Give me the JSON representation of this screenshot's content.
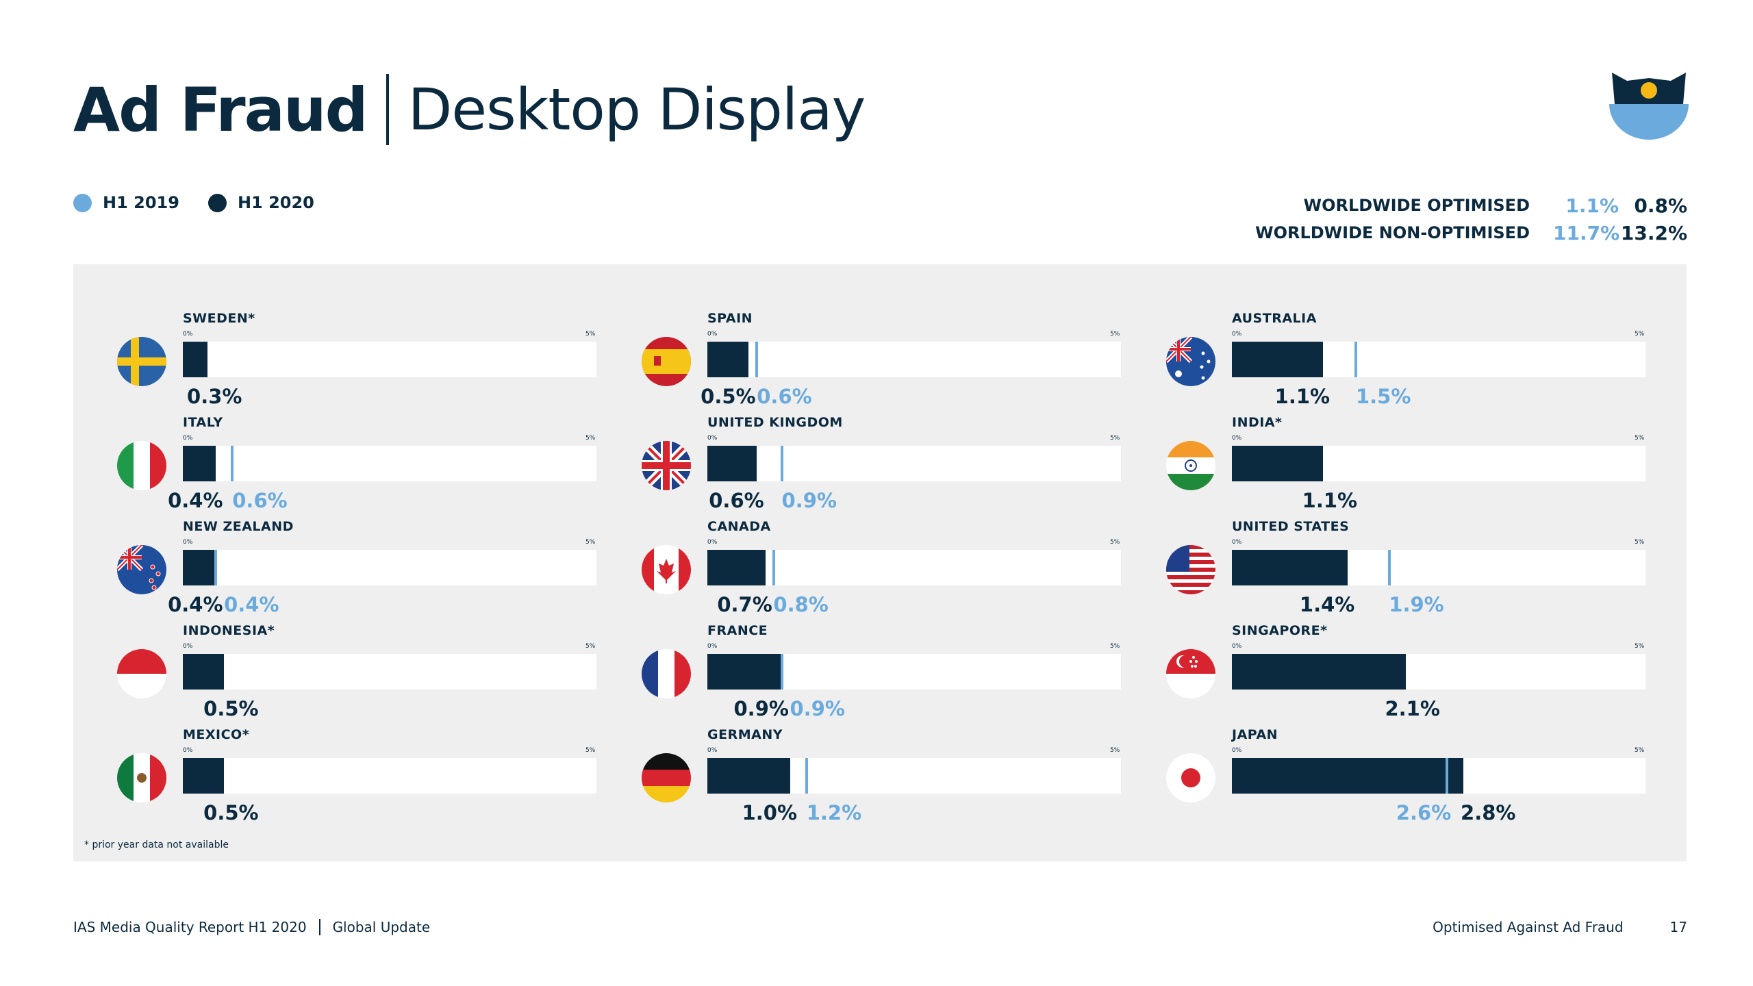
{
  "title": {
    "bold": "Ad Fraud",
    "light": "Desktop Display"
  },
  "legend": [
    {
      "label": "H1 2019",
      "color": "#6aaadd"
    },
    {
      "label": "H1 2020",
      "color": "#0b2a3f"
    }
  ],
  "worldwide": [
    {
      "label": "WORLDWIDE OPTIMISED",
      "h1_2019": "1.1%",
      "h1_2020": "0.8%"
    },
    {
      "label": "WORLDWIDE NON-OPTIMISED",
      "h1_2019": "11.7%",
      "h1_2020": "13.2%"
    }
  ],
  "axis": {
    "min_label": "0%",
    "max_label": "5%"
  },
  "note": "* prior year data not available",
  "colors": {
    "h1_2019": "#6aaadd",
    "h1_2020": "#0b2a3f",
    "panel": "#efefef"
  },
  "chart_data": {
    "type": "bar",
    "xlim": [
      0,
      5
    ],
    "series_names": [
      "H1 2019",
      "H1 2020"
    ],
    "countries": [
      {
        "name": "SWEDEN*",
        "flag": "sweden-flag",
        "h1_2019": null,
        "h1_2020": 0.3,
        "h1_2019_label": "",
        "h1_2020_label": "0.3%"
      },
      {
        "name": "ITALY",
        "flag": "italy-flag",
        "h1_2019": 0.6,
        "h1_2020": 0.4,
        "h1_2019_label": "0.6%",
        "h1_2020_label": "0.4%"
      },
      {
        "name": "NEW ZEALAND",
        "flag": "new-zealand-flag",
        "h1_2019": 0.4,
        "h1_2020": 0.4,
        "h1_2019_label": "0.4%",
        "h1_2020_label": "0.4%"
      },
      {
        "name": "INDONESIA*",
        "flag": "indonesia-flag",
        "h1_2019": null,
        "h1_2020": 0.5,
        "h1_2019_label": "",
        "h1_2020_label": "0.5%"
      },
      {
        "name": "MEXICO*",
        "flag": "mexico-flag",
        "h1_2019": null,
        "h1_2020": 0.5,
        "h1_2019_label": "",
        "h1_2020_label": "0.5%"
      },
      {
        "name": "SPAIN",
        "flag": "spain-flag",
        "h1_2019": 0.6,
        "h1_2020": 0.5,
        "h1_2019_label": "0.6%",
        "h1_2020_label": "0.5%"
      },
      {
        "name": "UNITED KINGDOM",
        "flag": "uk-flag",
        "h1_2019": 0.9,
        "h1_2020": 0.6,
        "h1_2019_label": "0.9%",
        "h1_2020_label": "0.6%"
      },
      {
        "name": "CANADA",
        "flag": "canada-flag",
        "h1_2019": 0.8,
        "h1_2020": 0.7,
        "h1_2019_label": "0.8%",
        "h1_2020_label": "0.7%"
      },
      {
        "name": "FRANCE",
        "flag": "france-flag",
        "h1_2019": 0.9,
        "h1_2020": 0.9,
        "h1_2019_label": "0.9%",
        "h1_2020_label": "0.9%"
      },
      {
        "name": "GERMANY",
        "flag": "germany-flag",
        "h1_2019": 1.2,
        "h1_2020": 1.0,
        "h1_2019_label": "1.2%",
        "h1_2020_label": "1.0%"
      },
      {
        "name": "AUSTRALIA",
        "flag": "australia-flag",
        "h1_2019": 1.5,
        "h1_2020": 1.1,
        "h1_2019_label": "1.5%",
        "h1_2020_label": "1.1%"
      },
      {
        "name": "INDIA*",
        "flag": "india-flag",
        "h1_2019": null,
        "h1_2020": 1.1,
        "h1_2019_label": "",
        "h1_2020_label": "1.1%"
      },
      {
        "name": "UNITED STATES",
        "flag": "usa-flag",
        "h1_2019": 1.9,
        "h1_2020": 1.4,
        "h1_2019_label": "1.9%",
        "h1_2020_label": "1.4%"
      },
      {
        "name": "SINGAPORE*",
        "flag": "singapore-flag",
        "h1_2019": null,
        "h1_2020": 2.1,
        "h1_2019_label": "",
        "h1_2020_label": "2.1%"
      },
      {
        "name": "JAPAN",
        "flag": "japan-flag",
        "h1_2019": 2.6,
        "h1_2020": 2.8,
        "h1_2019_label": "2.6%",
        "h1_2020_label": "2.8%"
      }
    ]
  },
  "footer": {
    "report": "IAS Media Quality Report H1 2020",
    "update": "Global Update",
    "section": "Optimised Against Ad Fraud",
    "page": "17"
  }
}
